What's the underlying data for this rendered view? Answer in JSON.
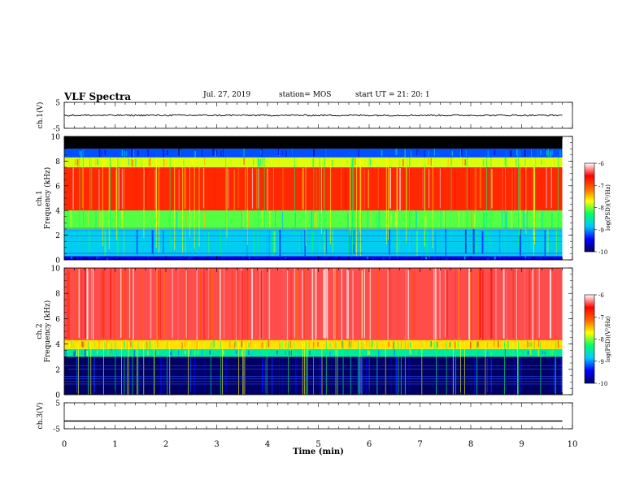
{
  "header": {
    "title": "VLF Spectra",
    "date": "Jul. 27, 2019",
    "station": "station= MOS",
    "start_ut": "start UT = 21: 20: 1"
  },
  "chart_data": [
    {
      "type": "line",
      "ylabel": "ch.1(V)",
      "ylim": [
        -5,
        5
      ],
      "yticks": [
        "5",
        "-5"
      ],
      "xlim": [
        0,
        10
      ],
      "series_level": 0.0,
      "noise": "low amplitude fluctuations around 0 V"
    },
    {
      "type": "heatmap",
      "channel_label": "ch.1",
      "ylabel": "Frequency (kHz)",
      "ylim": [
        0,
        10
      ],
      "yticks": [
        "0",
        "2",
        "4",
        "6",
        "8",
        "10"
      ],
      "xlim": [
        0,
        10
      ],
      "data_end_min": 9.8,
      "bands_khz": [
        {
          "from": 0.0,
          "to": 0.3,
          "level": -9.5
        },
        {
          "from": 0.3,
          "to": 2.5,
          "level": -8.8
        },
        {
          "from": 2.5,
          "to": 4.0,
          "level": -8.1
        },
        {
          "from": 4.0,
          "to": 7.5,
          "level": -6.8
        },
        {
          "from": 7.5,
          "to": 8.3,
          "level": -7.8
        },
        {
          "from": 8.3,
          "to": 9.0,
          "level": -9.2
        },
        {
          "from": 9.0,
          "to": 10.0,
          "level": null
        }
      ],
      "colorbar": {
        "label": "log(PSD)(V²/Hz)",
        "ticks": [
          "-6",
          "-7",
          "-8",
          "-9",
          "-10"
        ],
        "min": -10,
        "max": -6
      }
    },
    {
      "type": "heatmap",
      "channel_label": "ch.2",
      "ylabel": "Frequency (kHz)",
      "ylim": [
        0,
        10
      ],
      "yticks": [
        "0",
        "2",
        "4",
        "6",
        "8",
        "10"
      ],
      "xlim": [
        0,
        10
      ],
      "data_end_min": 9.8,
      "bands_khz": [
        {
          "from": 0.0,
          "to": 3.0,
          "level": -10.0
        },
        {
          "from": 3.0,
          "to": 3.6,
          "level": -8.5
        },
        {
          "from": 3.6,
          "to": 4.3,
          "level": -7.6
        },
        {
          "from": 4.3,
          "to": 10.0,
          "level": -6.4
        }
      ],
      "colorbar": {
        "label": "log(PSD)(V²/Hz)",
        "ticks": [
          "-6",
          "-7",
          "-8",
          "-9",
          "-10"
        ],
        "min": -10,
        "max": -6
      }
    },
    {
      "type": "line",
      "ylabel": "ch.3(V)",
      "ylim": [
        -5,
        5
      ],
      "yticks": [
        "5",
        "-5"
      ],
      "xlim": [
        0,
        10
      ],
      "series_level": -2.0
    }
  ],
  "xaxis": {
    "label": "Time (min)",
    "ticks": [
      "0",
      "1",
      "2",
      "3",
      "4",
      "5",
      "6",
      "7",
      "8",
      "9",
      "10"
    ]
  },
  "colors": {
    "ink": "#000000",
    "colormap": [
      "#000064",
      "#0000ff",
      "#00c8ff",
      "#00ff64",
      "#ffff00",
      "#ff6400",
      "#ff0000",
      "#ffffff"
    ]
  }
}
